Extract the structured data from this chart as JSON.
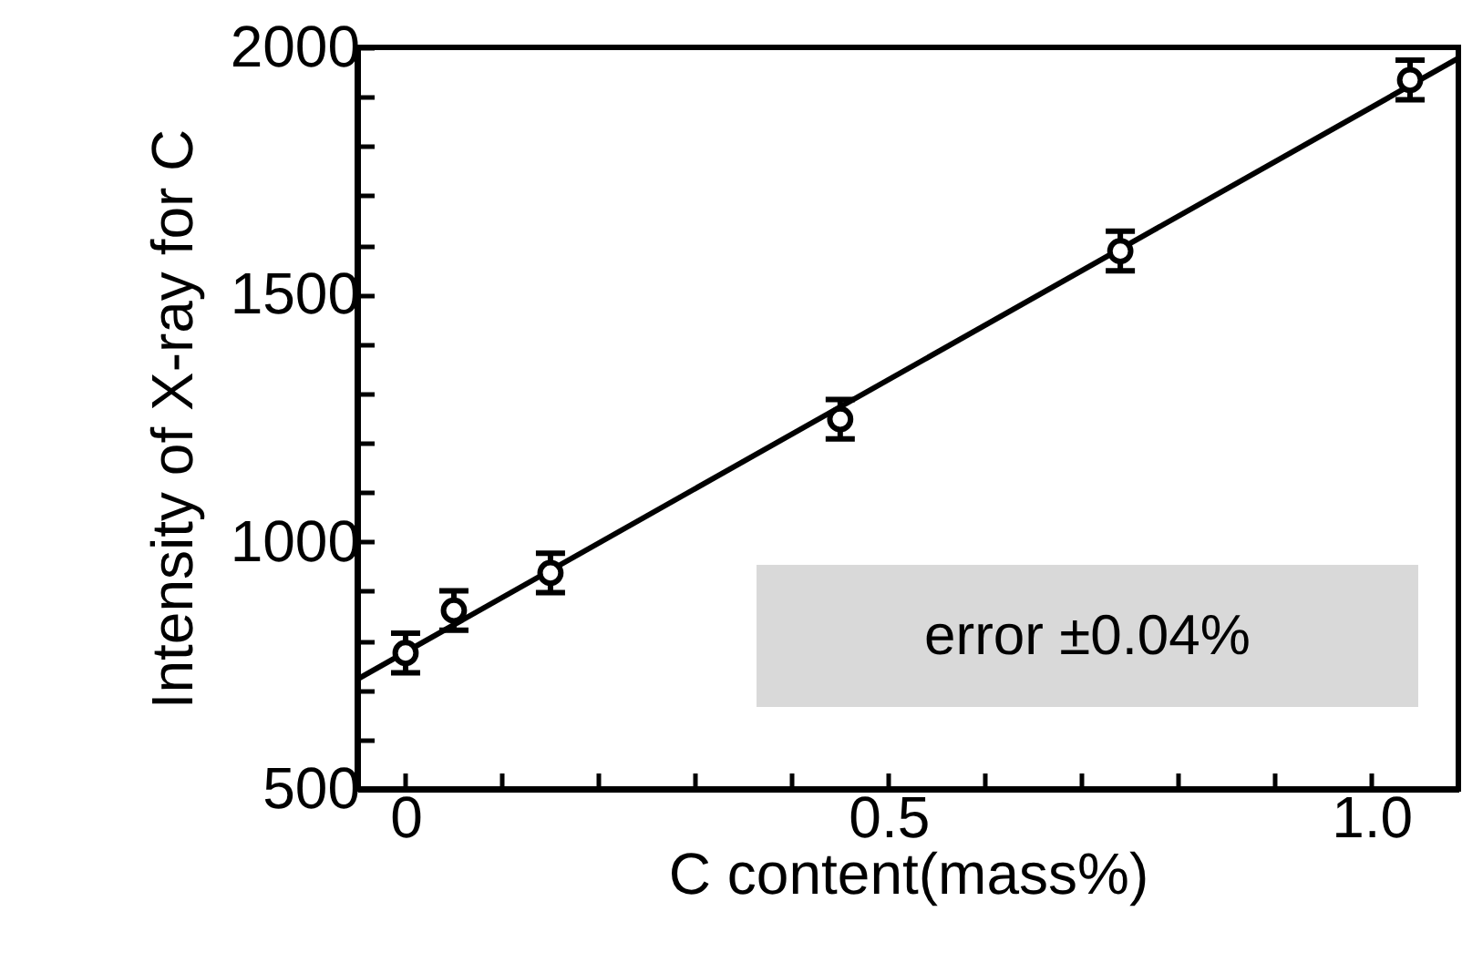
{
  "chart_data": {
    "type": "scatter",
    "xlabel": "C content(mass%)",
    "ylabel": "Intensity of X-ray for C",
    "annotations": [
      "error ±0.04%"
    ],
    "xlim": [
      -0.05,
      1.09
    ],
    "ylim": [
      500,
      2000
    ],
    "xticks": [
      0,
      {
        "value": 0.1,
        "label": null
      },
      {
        "value": 0.2,
        "label": null
      },
      {
        "value": 0.3,
        "label": null
      },
      {
        "value": 0.4,
        "label": null
      },
      0.5,
      {
        "value": 0.6,
        "label": null
      },
      {
        "value": 0.7,
        "label": null
      },
      {
        "value": 0.8,
        "label": null
      },
      {
        "value": 0.9,
        "label": null
      },
      {
        "value": 1,
        "label": "1.0"
      }
    ],
    "yticks": [
      500,
      {
        "value": 600,
        "label": null
      },
      {
        "value": 700,
        "label": null
      },
      {
        "value": 800,
        "label": null
      },
      {
        "value": 900,
        "label": null
      },
      1000,
      {
        "value": 1100,
        "label": null
      },
      {
        "value": 1200,
        "label": null
      },
      {
        "value": 1300,
        "label": null
      },
      {
        "value": 1400,
        "label": null
      },
      1500,
      {
        "value": 1600,
        "label": null
      },
      {
        "value": 1700,
        "label": null
      },
      {
        "value": 1800,
        "label": null
      },
      {
        "value": 1900,
        "label": null
      },
      2000
    ],
    "series": [
      {
        "type": "line",
        "color": "#000000",
        "x": [
          -0.05,
          1.09
        ],
        "values": [
          722,
          1978
        ]
      },
      {
        "type": "scatter",
        "color": "#000000",
        "marker": "circle",
        "x": [
          0,
          0.05,
          0.15,
          0.45,
          0.74,
          1.04
        ],
        "values": [
          775,
          861,
          937,
          1248,
          1588,
          1934
        ],
        "errors": [
          40,
          40,
          40,
          40,
          40,
          40
        ]
      }
    ]
  }
}
